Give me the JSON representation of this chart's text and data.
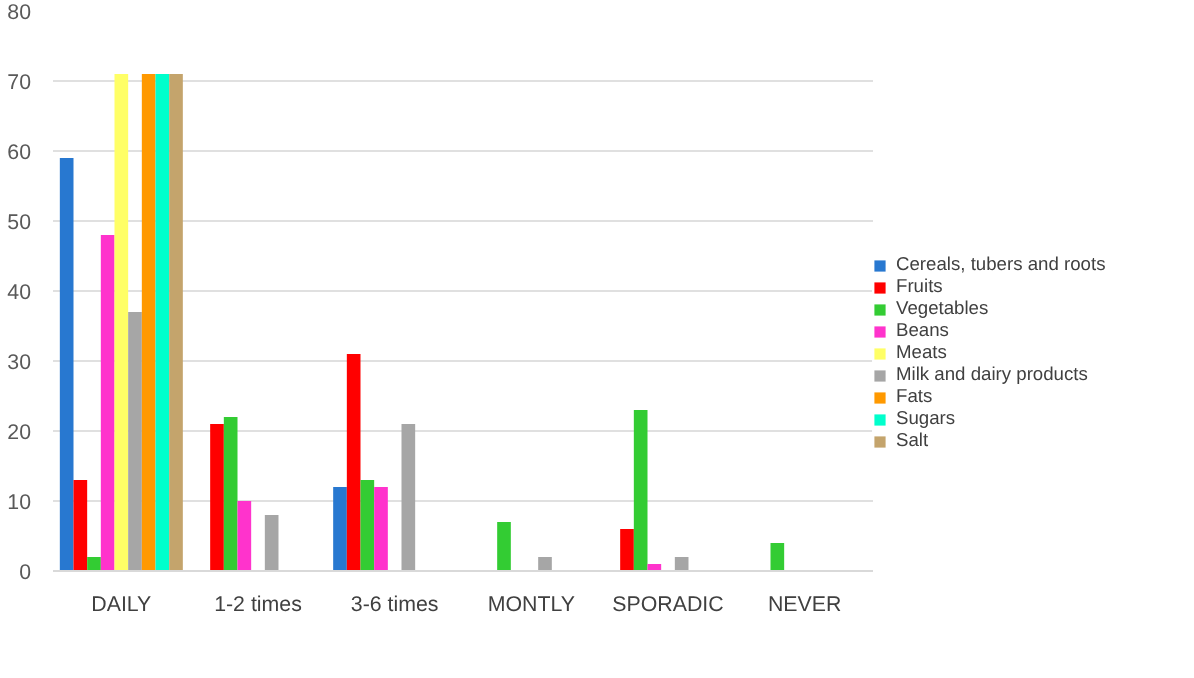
{
  "chart_data": {
    "type": "bar",
    "categories": [
      "DAILY",
      "1-2 times",
      "3-6 times",
      "MONTLY",
      "SPORADIC",
      "NEVER"
    ],
    "series": [
      {
        "name": "Cereals, tubers and roots",
        "color": "#2878d0",
        "values": [
          59,
          0,
          12,
          0,
          0,
          0
        ]
      },
      {
        "name": "Fruits",
        "color": "#ff0000",
        "values": [
          13,
          21,
          31,
          0,
          6,
          0
        ]
      },
      {
        "name": "Vegetables",
        "color": "#33cc33",
        "values": [
          2,
          22,
          13,
          7,
          23,
          4
        ]
      },
      {
        "name": "Beans",
        "color": "#ff33cc",
        "values": [
          48,
          10,
          12,
          0,
          1,
          0
        ]
      },
      {
        "name": "Meats",
        "color": "#ffff66",
        "values": [
          71,
          0,
          0,
          0,
          0,
          0
        ]
      },
      {
        "name": "Milk and dairy products",
        "color": "#a6a6a6",
        "values": [
          37,
          8,
          21,
          2,
          2,
          0
        ]
      },
      {
        "name": "Fats",
        "color": "#ff9900",
        "values": [
          71,
          0,
          0,
          0,
          0,
          0
        ]
      },
      {
        "name": "Sugars",
        "color": "#00ffcc",
        "values": [
          71,
          0,
          0,
          0,
          0,
          0
        ]
      },
      {
        "name": "Salt",
        "color": "#c4a46c",
        "values": [
          71,
          0,
          0,
          0,
          0,
          0
        ]
      }
    ],
    "ylim": [
      0,
      80
    ],
    "yticks": [
      0,
      10,
      20,
      30,
      40,
      50,
      60,
      70,
      80
    ],
    "grid": "y",
    "legend": "right"
  }
}
